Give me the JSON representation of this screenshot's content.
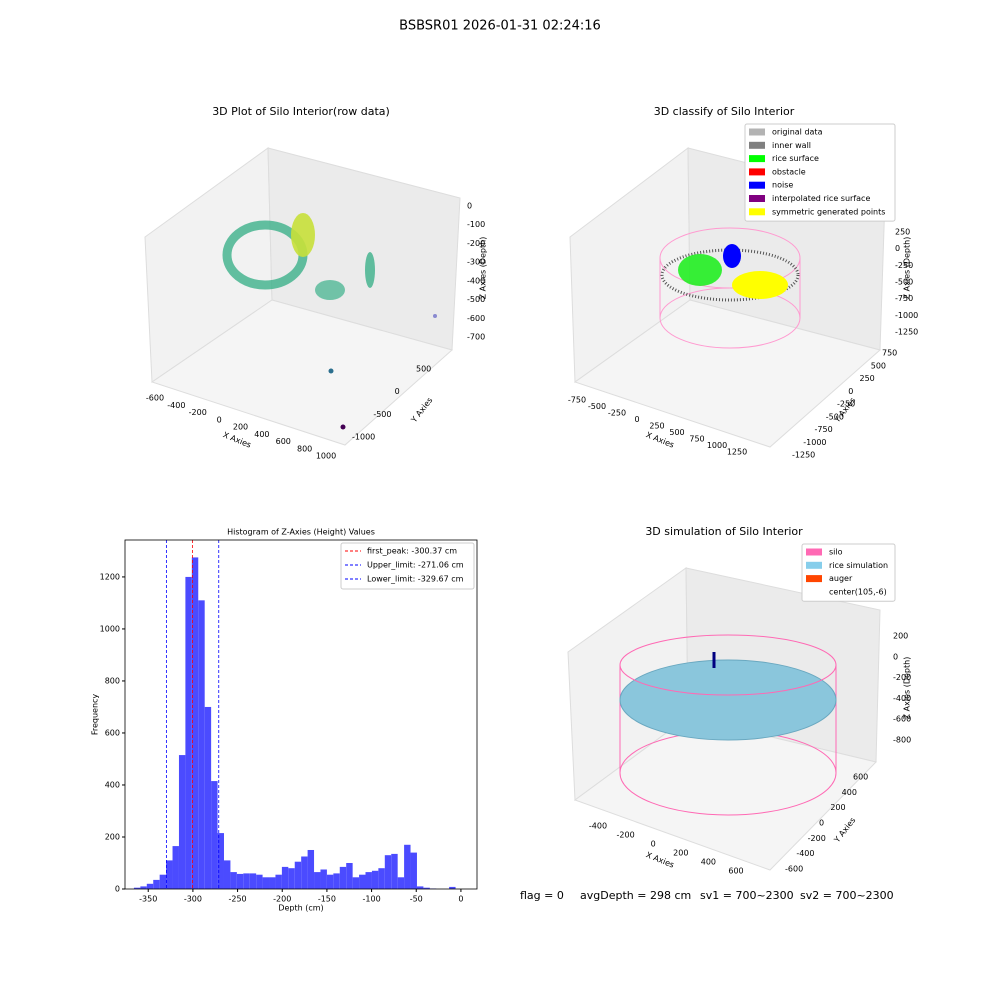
{
  "title": "BSBSR01 2026-01-31 02:24:16",
  "status": [
    "flag = 0",
    "avgDepth = 298 cm",
    "sv1 = 700~2300",
    "sv2 = 700~2300"
  ],
  "chart_data": [
    {
      "type": "scatter3d",
      "title": "3D Plot of Silo Interior(row data)",
      "xlabel": "X Axies",
      "ylabel": "Y Axies",
      "zlabel": "Z Axies (Depth)",
      "xticks": [
        -600,
        -400,
        -200,
        0,
        200,
        400,
        600,
        800,
        1000
      ],
      "yticks": [
        -1000,
        -500,
        0,
        500
      ],
      "zticks": [
        0,
        -100,
        -200,
        -300,
        -400,
        -500,
        -600,
        -700
      ]
    },
    {
      "type": "scatter3d",
      "title": "3D classify of Silo Interior",
      "xlabel": "X Axies",
      "ylabel": "Y Axies",
      "zlabel": "Z Axies (Depth)",
      "xticks": [
        -750,
        -500,
        -250,
        0,
        250,
        500,
        750,
        1000,
        1250
      ],
      "yticks": [
        -1250,
        -1000,
        -750,
        -500,
        -250,
        0,
        250,
        500,
        750
      ],
      "zticks": [
        250,
        0,
        -250,
        -500,
        -750,
        -1000,
        -1250
      ],
      "legend": [
        {
          "name": "original data",
          "color": "#b3b3b3"
        },
        {
          "name": "inner wall",
          "color": "#808080"
        },
        {
          "name": "rice surface",
          "color": "#00ff00"
        },
        {
          "name": "obstacle",
          "color": "#ff0000"
        },
        {
          "name": "noise",
          "color": "#0000ff"
        },
        {
          "name": "interpolated rice surface",
          "color": "#800080"
        },
        {
          "name": "symmetric generated points",
          "color": "#ffff00"
        }
      ]
    },
    {
      "type": "histogram",
      "title": "Histogram of Z-Axies (Height) Values",
      "xlabel": "Depth (cm)",
      "ylabel": "Frequency",
      "color": "#4b4bff",
      "bins": [
        -366,
        -358.8,
        -351.6,
        -344.4,
        -337.2,
        -330,
        -322.8,
        -315.6,
        -308.4,
        -301.2,
        -294,
        -286.8,
        -279.6,
        -272.4,
        -265.2,
        -258,
        -250.8,
        -243.6,
        -236.4,
        -229.2,
        -222,
        -214.8,
        -207.6,
        -200.4,
        -193.2,
        -186,
        -178.8,
        -171.6,
        -164.4,
        -157.2,
        -150,
        -142.8,
        -135.6,
        -128.4,
        -121.2,
        -114,
        -106.8,
        -99.6,
        -92.4,
        -85.2,
        -78,
        -70.8,
        -63.6,
        -56.4,
        -49.2,
        -42,
        -34.8,
        -27.6,
        -20.4,
        -13.2,
        -6,
        1.2
      ],
      "counts": [
        5,
        10,
        20,
        35,
        55,
        110,
        165,
        515,
        1200,
        1275,
        1110,
        700,
        415,
        215,
        110,
        65,
        58,
        60,
        60,
        55,
        45,
        45,
        55,
        85,
        80,
        105,
        125,
        150,
        65,
        75,
        55,
        60,
        85,
        100,
        45,
        55,
        65,
        70,
        80,
        130,
        135,
        45,
        170,
        140,
        10,
        5,
        2,
        0,
        0,
        8,
        0
      ],
      "lines": [
        {
          "name": "first_peak: -300.37 cm",
          "value": -300.37,
          "color": "#ff0000"
        },
        {
          "name": "Upper_limit: -271.06 cm",
          "value": -271.06,
          "color": "#0000ff"
        },
        {
          "name": "Lower_limit: -329.67 cm",
          "value": -329.67,
          "color": "#0000ff"
        }
      ],
      "xlim": [
        -376,
        18
      ],
      "ylim": [
        0,
        1342
      ],
      "xticks": [
        -350,
        -300,
        -250,
        -200,
        -150,
        -100,
        -50,
        0
      ],
      "yticks": [
        0,
        200,
        400,
        600,
        800,
        1000,
        1200
      ]
    },
    {
      "type": "surface3d",
      "title": "3D simulation of Silo Interior",
      "xlabel": "X Axies",
      "ylabel": "Y Axies",
      "zlabel": "Z Axies (Depth)",
      "xticks": [
        -400,
        -200,
        0,
        200,
        400,
        600
      ],
      "yticks": [
        -600,
        -400,
        -200,
        0,
        200,
        400,
        600
      ],
      "zticks": [
        200,
        0,
        -200,
        -400,
        -600,
        -800
      ],
      "legend": [
        {
          "name": "silo",
          "color": "#ff69b4"
        },
        {
          "name": "rice simulation",
          "color": "#87ceeb"
        },
        {
          "name": "auger",
          "color": "#ff4500"
        },
        {
          "name": "center(105,-6)",
          "color": null
        }
      ]
    }
  ]
}
